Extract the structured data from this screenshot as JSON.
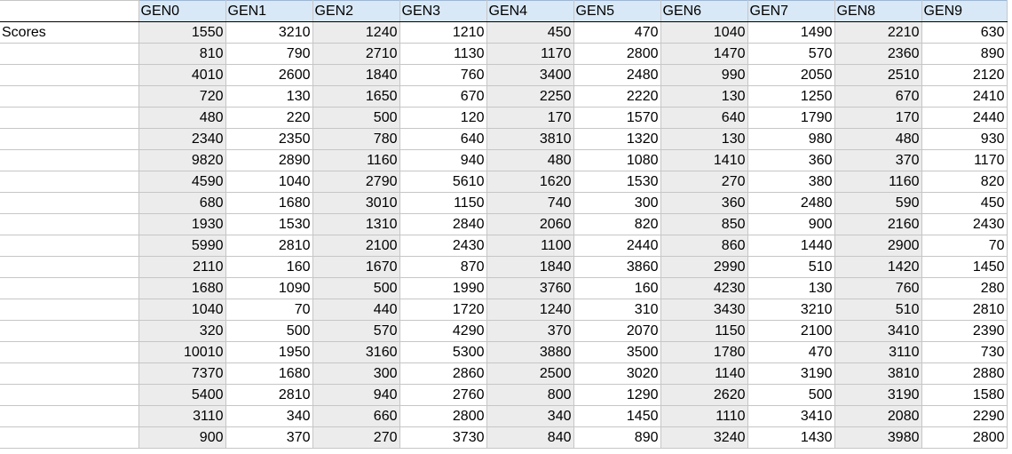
{
  "sheet": {
    "row_label": "Scores",
    "headers": [
      "GEN0",
      "GEN1",
      "GEN2",
      "GEN3",
      "GEN4",
      "GEN5",
      "GEN6",
      "GEN7",
      "GEN8",
      "GEN9"
    ],
    "rows": [
      [
        1550,
        3210,
        1240,
        1210,
        450,
        470,
        1040,
        1490,
        2210,
        630
      ],
      [
        810,
        790,
        2710,
        1130,
        1170,
        2800,
        1470,
        570,
        2360,
        890
      ],
      [
        4010,
        2600,
        1840,
        760,
        3400,
        2480,
        990,
        2050,
        2510,
        2120
      ],
      [
        720,
        130,
        1650,
        670,
        2250,
        2220,
        130,
        1250,
        670,
        2410
      ],
      [
        480,
        220,
        500,
        120,
        170,
        1570,
        640,
        1790,
        170,
        2440
      ],
      [
        2340,
        2350,
        780,
        640,
        3810,
        1320,
        130,
        980,
        480,
        930
      ],
      [
        9820,
        2890,
        1160,
        940,
        480,
        1080,
        1410,
        360,
        370,
        1170
      ],
      [
        4590,
        1040,
        2790,
        5610,
        1620,
        1530,
        270,
        380,
        1160,
        820
      ],
      [
        680,
        1680,
        3010,
        1150,
        740,
        300,
        360,
        2480,
        590,
        450
      ],
      [
        1930,
        1530,
        1310,
        2840,
        2060,
        820,
        850,
        900,
        2160,
        2430
      ],
      [
        5990,
        2810,
        2100,
        2430,
        1100,
        2440,
        860,
        1440,
        2900,
        70
      ],
      [
        2110,
        160,
        1670,
        870,
        1840,
        3860,
        2990,
        510,
        1420,
        1450
      ],
      [
        1680,
        1090,
        500,
        1990,
        3760,
        160,
        4230,
        130,
        760,
        280
      ],
      [
        1040,
        70,
        440,
        1720,
        1240,
        310,
        3430,
        3210,
        510,
        2810
      ],
      [
        320,
        500,
        570,
        4290,
        370,
        2070,
        1150,
        2100,
        3410,
        2390
      ],
      [
        10010,
        1950,
        3160,
        5300,
        3880,
        3500,
        1780,
        470,
        3110,
        730
      ],
      [
        7370,
        1680,
        300,
        2860,
        2500,
        3020,
        1140,
        3190,
        3810,
        2880
      ],
      [
        5400,
        2810,
        940,
        2760,
        800,
        1290,
        2620,
        500,
        3190,
        1580
      ],
      [
        3110,
        340,
        660,
        2800,
        340,
        1450,
        1110,
        3410,
        2080,
        2290
      ],
      [
        900,
        370,
        270,
        3730,
        840,
        890,
        3240,
        1430,
        3980,
        2800
      ]
    ]
  },
  "colors": {
    "header_fill": "#d9e8f6",
    "shade_fill": "#ececec",
    "gridline": "#c6c6c6"
  }
}
